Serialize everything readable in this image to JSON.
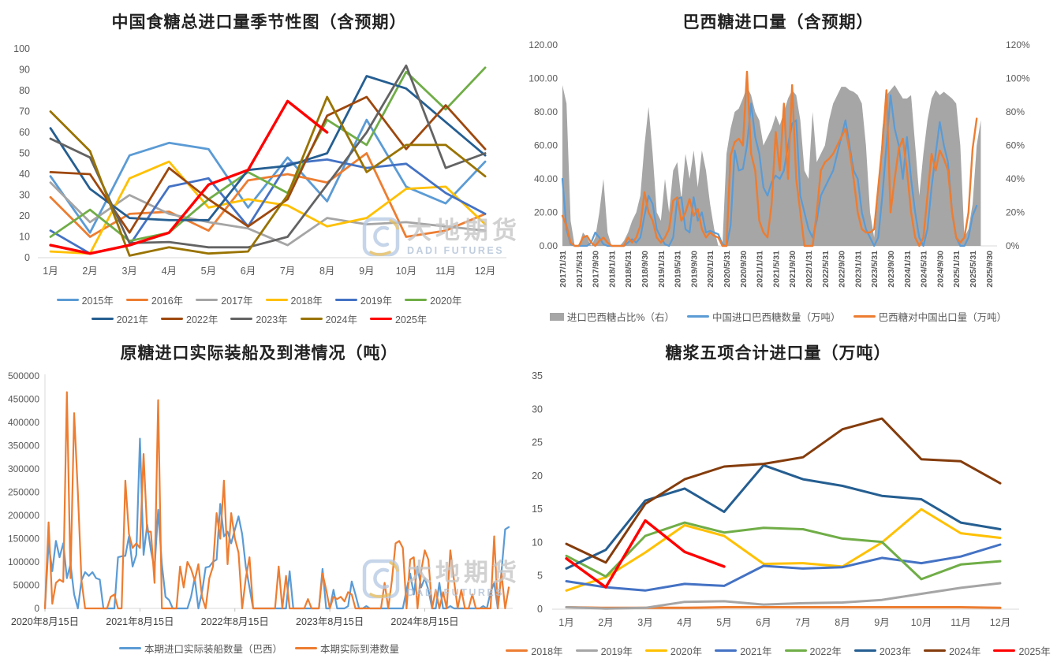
{
  "watermark": {
    "cn": "大地期货",
    "en": "DADI FUTURES"
  },
  "chart_data": [
    {
      "id": "china-sugar-total-imports-seasonal",
      "type": "line",
      "title": "中国食糖总进口量季节性图（含预期）",
      "grid": false,
      "legend_position": "bottom",
      "categories": [
        "1月",
        "2月",
        "3月",
        "4月",
        "5月",
        "6月",
        "7月",
        "8月",
        "9月",
        "10月",
        "11月",
        "12月"
      ],
      "ylim": [
        0,
        100
      ],
      "y_ticks": [
        0,
        10,
        20,
        30,
        40,
        50,
        60,
        70,
        80,
        90,
        100
      ],
      "series": [
        {
          "name": "2015年",
          "color": "#5B9BD5",
          "values": [
            39,
            12,
            49,
            55,
            52,
            24,
            48,
            27,
            66,
            34,
            26,
            46
          ]
        },
        {
          "name": "2016年",
          "color": "#ED7D31",
          "values": [
            29,
            10,
            21,
            22,
            13,
            37,
            40,
            36,
            50,
            10,
            13,
            21
          ]
        },
        {
          "name": "2017年",
          "color": "#A5A5A5",
          "values": [
            36,
            17,
            30,
            21,
            17,
            14,
            6,
            19,
            16,
            17,
            15,
            13
          ]
        },
        {
          "name": "2018年",
          "color": "#FFC000",
          "values": [
            3,
            2,
            38,
            46,
            24,
            28,
            25,
            15,
            19,
            33,
            34,
            16
          ]
        },
        {
          "name": "2019年",
          "color": "#4472C4",
          "values": [
            13,
            2,
            6,
            34,
            38,
            15,
            45,
            47,
            43,
            45,
            31,
            21
          ]
        },
        {
          "name": "2020年",
          "color": "#70AD47",
          "values": [
            10,
            23,
            8,
            12,
            28,
            41,
            31,
            66,
            54,
            89,
            71,
            91
          ]
        },
        {
          "name": "2021年",
          "color": "#255E91",
          "values": [
            62,
            33,
            19,
            18,
            18,
            42,
            44,
            50,
            87,
            81,
            65,
            49
          ]
        },
        {
          "name": "2022年",
          "color": "#9E480E",
          "values": [
            41,
            40,
            12,
            43,
            28,
            15,
            28,
            68,
            77,
            52,
            73,
            52
          ]
        },
        {
          "name": "2023年",
          "color": "#636363",
          "values": [
            57,
            48,
            7,
            7.5,
            5,
            5,
            10,
            35,
            60,
            92,
            43,
            50
          ]
        },
        {
          "name": "2024年",
          "color": "#997300",
          "values": [
            70,
            51,
            1,
            5,
            2,
            3,
            30,
            77,
            41,
            54,
            54,
            39
          ]
        },
        {
          "name": "2025年",
          "color": "#FF0000",
          "values": [
            6,
            2,
            6,
            12,
            35,
            42,
            75,
            60,
            null,
            null,
            null,
            null
          ]
        }
      ]
    },
    {
      "id": "brazil-sugar-imports",
      "type": "combo-area-line",
      "title": "巴西糖进口量（含预期）",
      "grid": false,
      "x_points": 105,
      "x_tick_labels": [
        "2017/1/31",
        "2017/5/31",
        "2017/9/30",
        "2018/1/31",
        "2018/5/31",
        "2018/9/30",
        "2019/1/31",
        "2019/5/31",
        "2019/9/30",
        "2020/1/31",
        "2020/5/31",
        "2020/9/30",
        "2021/1/31",
        "2021/5/31",
        "2021/9/30",
        "2022/1/31",
        "2022/5/31",
        "2022/9/30",
        "2023/1/31",
        "2023/5/31",
        "2023/9/30",
        "2024/1/31",
        "2024/5/31",
        "2024/9/30",
        "2025/1/31",
        "2025/5/31",
        "2025/9/30"
      ],
      "left_axis": {
        "lim": [
          0,
          120
        ],
        "ticks": [
          "0.00",
          "20.00",
          "40.00",
          "60.00",
          "80.00",
          "100.00",
          "120.00"
        ]
      },
      "right_axis": {
        "lim_pct": [
          0,
          120
        ],
        "ticks": [
          "0%",
          "20%",
          "40%",
          "60%",
          "80%",
          "100%",
          "120%"
        ]
      },
      "series": [
        {
          "name": "进口巴西糖占比%（右）",
          "type": "area",
          "axis": "right",
          "color": "#A6A6A6",
          "values": [
            96,
            85,
            15,
            0,
            0,
            8,
            5,
            0,
            5,
            20,
            40,
            8,
            0,
            0,
            0,
            3,
            8,
            15,
            20,
            30,
            60,
            83,
            55,
            20,
            15,
            40,
            20,
            45,
            50,
            28,
            55,
            40,
            57,
            35,
            57,
            45,
            25,
            10,
            0,
            0,
            55,
            70,
            80,
            82,
            88,
            95,
            90,
            80,
            75,
            60,
            65,
            70,
            78,
            72,
            80,
            88,
            93,
            90,
            75,
            45,
            40,
            80,
            50,
            55,
            60,
            75,
            85,
            90,
            95,
            95,
            93,
            92,
            90,
            85,
            60,
            20,
            5,
            30,
            70,
            90,
            93,
            96,
            92,
            88,
            88,
            90,
            60,
            30,
            55,
            75,
            88,
            93,
            90,
            92,
            90,
            88,
            85,
            60,
            5,
            10,
            25,
            60,
            75,
            null,
            null
          ]
        },
        {
          "name": "中国进口巴西糖数量（万吨）",
          "type": "line",
          "axis": "left",
          "color": "#5B9BD5",
          "values": [
            40,
            10,
            1,
            0,
            0,
            0,
            0,
            2,
            8,
            5,
            1,
            0,
            0,
            0,
            0,
            0,
            2,
            4,
            2,
            5,
            18,
            30,
            25,
            10,
            5,
            1,
            0,
            5,
            28,
            29,
            10,
            8,
            29,
            15,
            20,
            8,
            9,
            8,
            7,
            1,
            0,
            12,
            57,
            45,
            46,
            60,
            85,
            65,
            55,
            35,
            30,
            38,
            42,
            40,
            45,
            60,
            73,
            75,
            30,
            20,
            10,
            5,
            15,
            30,
            35,
            40,
            45,
            55,
            65,
            75,
            60,
            45,
            40,
            20,
            10,
            5,
            0,
            5,
            30,
            60,
            90,
            70,
            60,
            40,
            65,
            40,
            20,
            5,
            0,
            10,
            35,
            55,
            74,
            60,
            50,
            20,
            5,
            0,
            0,
            5,
            18,
            24,
            null,
            null,
            null
          ]
        },
        {
          "name": "巴西糖对中国出口量（万吨）",
          "type": "line",
          "axis": "left",
          "color": "#ED7D31",
          "values": [
            18,
            12,
            2,
            0,
            0,
            5,
            6,
            2,
            0,
            3,
            5,
            2,
            0,
            0,
            0,
            0,
            5,
            2,
            5,
            12,
            32,
            20,
            15,
            5,
            2,
            5,
            10,
            27,
            29,
            15,
            20,
            28,
            18,
            22,
            10,
            5,
            8,
            6,
            5,
            0,
            0,
            54,
            62,
            64,
            60,
            104,
            55,
            45,
            15,
            8,
            5,
            25,
            68,
            45,
            85,
            40,
            96,
            40,
            20,
            0,
            0,
            0,
            20,
            45,
            50,
            52,
            55,
            60,
            65,
            70,
            57,
            40,
            20,
            10,
            8,
            8,
            10,
            35,
            60,
            93,
            20,
            40,
            58,
            64,
            45,
            20,
            5,
            0,
            5,
            30,
            55,
            45,
            57,
            52,
            45,
            20,
            5,
            2,
            5,
            20,
            58,
            76,
            null,
            null,
            null
          ]
        }
      ]
    },
    {
      "id": "raw-sugar-shipment-and-arrival",
      "type": "line",
      "title": "原糖进口实际装船及到港情况（吨）",
      "grid": false,
      "x_points": 128,
      "x_tick_labels": [
        {
          "index": 0,
          "label": "2020年8月15日"
        },
        {
          "index": 26,
          "label": "2021年8月15日"
        },
        {
          "index": 52,
          "label": "2022年8月15日"
        },
        {
          "index": 78,
          "label": "2023年8月15日"
        },
        {
          "index": 104,
          "label": "2024年8月15日"
        }
      ],
      "ylim": [
        0,
        500000
      ],
      "y_ticks": [
        "0",
        "50000",
        "100000",
        "150000",
        "200000",
        "250000",
        "300000",
        "350000",
        "400000",
        "450000",
        "500000"
      ],
      "series": [
        {
          "name": "本期进口实际装船数量（巴西）",
          "color": "#5B9BD5",
          "values": [
            0,
            140000,
            80000,
            145000,
            110000,
            140000,
            65000,
            95000,
            30000,
            0,
            60000,
            78000,
            70000,
            78000,
            65000,
            62000,
            0,
            0,
            0,
            0,
            110000,
            112000,
            113000,
            155000,
            90000,
            115000,
            365000,
            115000,
            180000,
            125000,
            85000,
            212000,
            95000,
            25000,
            18000,
            0,
            0,
            0,
            0,
            0,
            25000,
            65000,
            0,
            35000,
            88000,
            90000,
            100000,
            105000,
            225000,
            155000,
            165000,
            140000,
            170000,
            198000,
            160000,
            90000,
            45000,
            0,
            0,
            0,
            0,
            0,
            0,
            0,
            0,
            0,
            0,
            80000,
            0,
            0,
            0,
            0,
            0,
            0,
            0,
            0,
            85000,
            0,
            0,
            40000,
            0,
            0,
            0,
            5000,
            58000,
            30000,
            0,
            0,
            5000,
            0,
            0,
            0,
            0,
            0,
            0,
            0,
            0,
            0,
            0,
            40000,
            75000,
            30000,
            90000,
            45000,
            65000,
            40000,
            0,
            0,
            55000,
            0,
            0,
            5000,
            0,
            0,
            0,
            0,
            0,
            0,
            0,
            0,
            5000,
            0,
            35000,
            55000,
            0,
            80000,
            170000,
            175000
          ]
        },
        {
          "name": "本期实际到港数量",
          "color": "#ED7D31",
          "values": [
            0,
            185000,
            10000,
            55000,
            62000,
            57000,
            465000,
            65000,
            420000,
            250000,
            60000,
            0,
            0,
            0,
            0,
            0,
            0,
            0,
            25000,
            30000,
            0,
            0,
            275000,
            160000,
            130000,
            140000,
            130000,
            332000,
            165000,
            165000,
            55000,
            448000,
            0,
            0,
            0,
            0,
            0,
            90000,
            45000,
            100000,
            85000,
            60000,
            95000,
            25000,
            0,
            65000,
            90000,
            205000,
            150000,
            275000,
            95000,
            205000,
            150000,
            120000,
            0,
            65000,
            110000,
            0,
            0,
            0,
            0,
            0,
            0,
            0,
            90000,
            0,
            70000,
            0,
            0,
            0,
            0,
            0,
            20000,
            0,
            0,
            0,
            75000,
            40000,
            0,
            25000,
            20000,
            25000,
            15000,
            35000,
            30000,
            0,
            0,
            0,
            0,
            0,
            0,
            0,
            0,
            55000,
            0,
            60000,
            140000,
            145000,
            130000,
            0,
            105000,
            110000,
            0,
            80000,
            125000,
            105000,
            0,
            40000,
            0,
            35000,
            0,
            125000,
            60000,
            0,
            40000,
            0,
            0,
            30000,
            0,
            0,
            0,
            0,
            0,
            155000,
            0,
            75000,
            0,
            45000
          ]
        }
      ]
    },
    {
      "id": "syrup-five-items-total-imports",
      "type": "line",
      "title": "糖浆五项合计进口量（万吨）",
      "grid": false,
      "legend_position": "bottom",
      "categories": [
        "1月",
        "2月",
        "3月",
        "4月",
        "5月",
        "6月",
        "7月",
        "8月",
        "9月",
        "10月",
        "11月",
        "12月"
      ],
      "ylim": [
        0,
        35
      ],
      "y_ticks": [
        0,
        5,
        10,
        15,
        20,
        25,
        30,
        35
      ],
      "series": [
        {
          "name": "2018年",
          "color": "#ED7D31",
          "values": [
            0.3,
            0.2,
            0.2,
            0.2,
            0.3,
            0.3,
            0.3,
            0.3,
            0.3,
            0.3,
            0.3,
            0.2
          ]
        },
        {
          "name": "2019年",
          "color": "#A5A5A5",
          "values": [
            0.3,
            0.1,
            0.2,
            1.1,
            1.2,
            0.7,
            0.9,
            1.0,
            1.4,
            2.3,
            3.2,
            3.9
          ]
        },
        {
          "name": "2020年",
          "color": "#FFC000",
          "values": [
            2.8,
            4.8,
            8.5,
            12.6,
            11.0,
            6.8,
            6.9,
            6.4,
            10.0,
            15.0,
            11.4,
            10.7
          ]
        },
        {
          "name": "2021年",
          "color": "#4472C4",
          "values": [
            4.2,
            3.3,
            2.8,
            3.8,
            3.5,
            6.5,
            6.1,
            6.3,
            7.7,
            6.9,
            7.9,
            9.7
          ]
        },
        {
          "name": "2022年",
          "color": "#70AD47",
          "values": [
            8.0,
            4.9,
            11.0,
            13.0,
            11.5,
            12.2,
            12.0,
            10.6,
            10.1,
            4.5,
            6.7,
            7.2
          ]
        },
        {
          "name": "2023年",
          "color": "#255E91",
          "values": [
            6.1,
            8.9,
            16.3,
            18.1,
            14.6,
            21.6,
            19.5,
            18.5,
            17.0,
            16.5,
            13.0,
            12.0
          ]
        },
        {
          "name": "2024年",
          "color": "#843C0C",
          "values": [
            9.8,
            7.0,
            15.8,
            19.5,
            21.4,
            21.8,
            22.8,
            27.0,
            28.6,
            22.5,
            22.2,
            18.9
          ]
        },
        {
          "name": "2025年",
          "color": "#FF0000",
          "values": [
            7.6,
            3.3,
            13.3,
            8.6,
            6.4,
            null,
            null,
            null,
            null,
            null,
            null,
            null
          ]
        }
      ]
    }
  ]
}
